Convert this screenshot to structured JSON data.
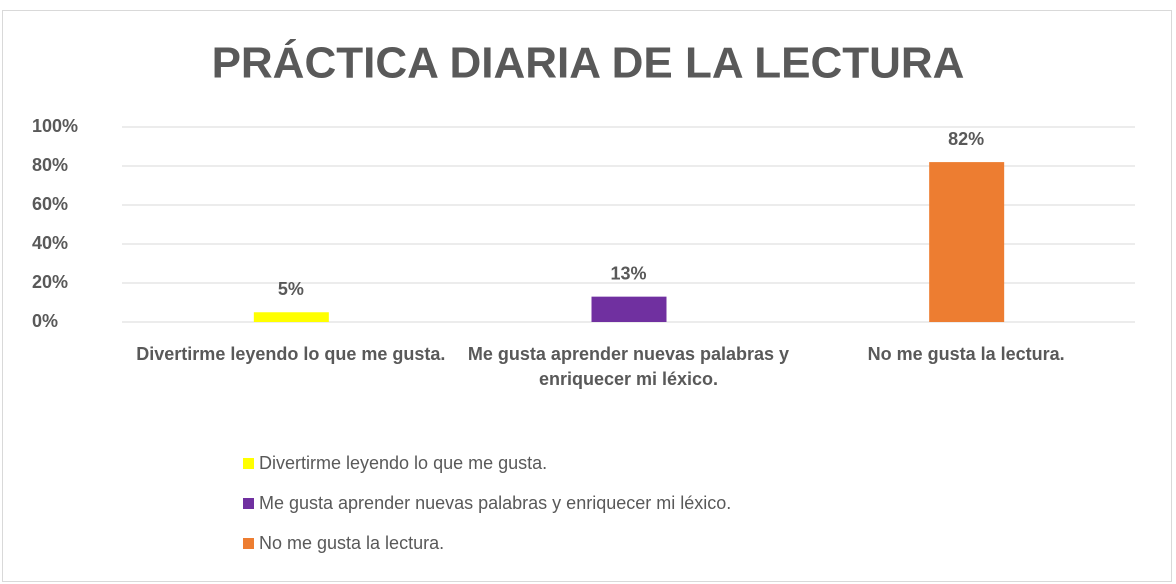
{
  "chart_data": {
    "type": "bar",
    "title": "PRÁCTICA DIARIA DE LA LECTURA",
    "categories": [
      "Divertirme leyendo lo que me gusta.",
      "Me gusta aprender nuevas palabras y enriquecer mi léxico.",
      "No me gusta la lectura."
    ],
    "values": [
      5,
      13,
      82
    ],
    "value_labels": [
      "5%",
      "13%",
      "82%"
    ],
    "colors": [
      "#ffff00",
      "#7030a0",
      "#ed7d31"
    ],
    "ylim": [
      0,
      100
    ],
    "yticks": [
      {
        "value": 0,
        "label": "0%"
      },
      {
        "value": 20,
        "label": "20%"
      },
      {
        "value": 40,
        "label": "40%"
      },
      {
        "value": 60,
        "label": "60%"
      },
      {
        "value": 80,
        "label": "80%"
      },
      {
        "value": 100,
        "label": "100%"
      }
    ],
    "grid": true,
    "legend": "bottom"
  }
}
